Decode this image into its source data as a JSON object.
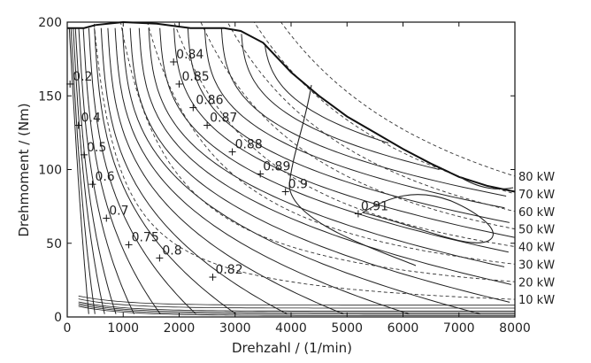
{
  "chart_data": {
    "type": "line",
    "title": "",
    "xlabel": "Drehzahl / (1/min)",
    "ylabel": "Drehmoment / (Nm)",
    "xlim": [
      0,
      8000
    ],
    "ylim": [
      0,
      200
    ],
    "x_ticks": [
      "0",
      "1000",
      "2000",
      "3000",
      "4000",
      "5000",
      "6000",
      "7000",
      "8000"
    ],
    "y_ticks": [
      "0",
      "50",
      "100",
      "150",
      "200"
    ],
    "grid": false,
    "full_load_curve": [
      [
        0,
        196
      ],
      [
        300,
        196
      ],
      [
        500,
        198
      ],
      [
        1000,
        200
      ],
      [
        1600,
        199
      ],
      [
        2200,
        196
      ],
      [
        2800,
        196
      ],
      [
        3100,
        194
      ],
      [
        3500,
        186
      ],
      [
        4000,
        166
      ],
      [
        4500,
        150
      ],
      [
        5000,
        136
      ],
      [
        5500,
        125
      ],
      [
        6000,
        114
      ],
      [
        6500,
        104
      ],
      [
        7000,
        95
      ],
      [
        7500,
        89
      ],
      [
        8000,
        85
      ]
    ],
    "power_lines": [
      {
        "label": "80 kW",
        "kw": 80
      },
      {
        "label": "70 kW",
        "kw": 70
      },
      {
        "label": "60 kW",
        "kw": 60
      },
      {
        "label": "50 kW",
        "kw": 50
      },
      {
        "label": "40 kW",
        "kw": 40
      },
      {
        "label": "30 kW",
        "kw": 30
      },
      {
        "label": "20 kW",
        "kw": 20
      },
      {
        "label": "10 kW",
        "kw": 10
      }
    ],
    "efficiency_labels": [
      {
        "text": "0.2",
        "x": 50,
        "y": 158
      },
      {
        "text": "0.4",
        "x": 200,
        "y": 130
      },
      {
        "text": "0.5",
        "x": 300,
        "y": 110
      },
      {
        "text": "0.6",
        "x": 450,
        "y": 90
      },
      {
        "text": "0.7",
        "x": 700,
        "y": 67
      },
      {
        "text": "0.75",
        "x": 1100,
        "y": 49
      },
      {
        "text": "0.8",
        "x": 1650,
        "y": 40
      },
      {
        "text": "0.82",
        "x": 2600,
        "y": 27
      },
      {
        "text": "0.84",
        "x": 1900,
        "y": 173
      },
      {
        "text": "0.85",
        "x": 2000,
        "y": 158
      },
      {
        "text": "0.86",
        "x": 2250,
        "y": 142
      },
      {
        "text": "0.87",
        "x": 2500,
        "y": 130
      },
      {
        "text": "0.88",
        "x": 2950,
        "y": 112
      },
      {
        "text": "0.89",
        "x": 3450,
        "y": 97
      },
      {
        "text": "0.9",
        "x": 3900,
        "y": 85
      },
      {
        "text": "0.91",
        "x": 5200,
        "y": 70
      }
    ]
  }
}
